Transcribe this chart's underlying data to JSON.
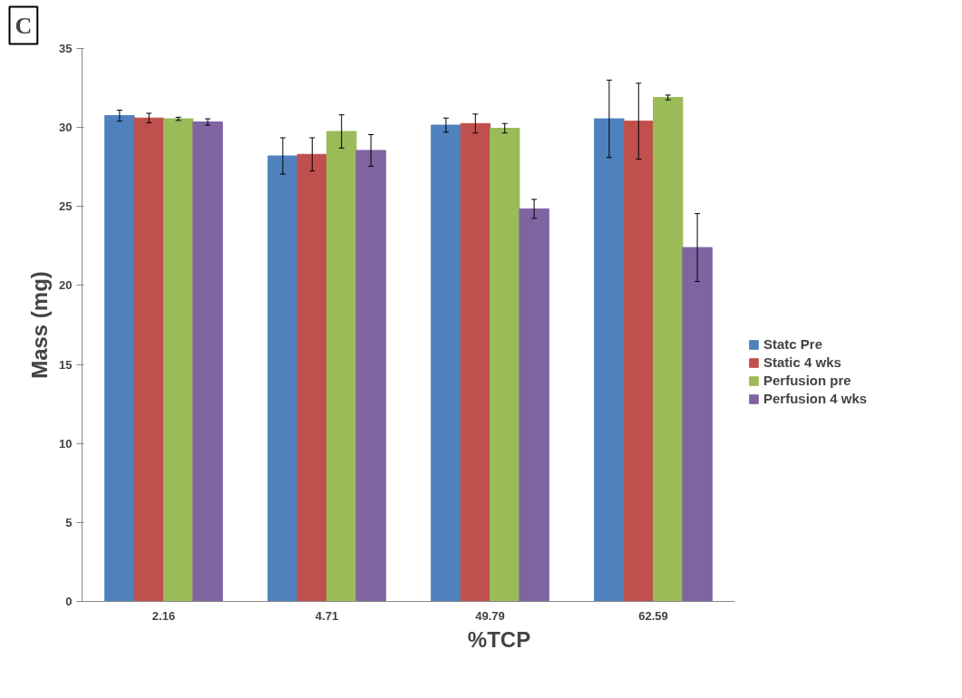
{
  "chart_data": {
    "type": "bar",
    "categories": [
      "2.16",
      "4.71",
      "49.79",
      "62.59"
    ],
    "xlabel": "%TCP",
    "ylabel": "Mass (mg)",
    "annotations": [
      "C"
    ],
    "ylim": [
      0,
      35
    ],
    "yticks": [
      0,
      5,
      10,
      15,
      20,
      25,
      30,
      35
    ],
    "grid": false,
    "legend": "right",
    "series": [
      {
        "name": "Statc Pre",
        "color": "#4f81bd",
        "values": [
          30.75,
          28.2,
          30.15,
          30.55
        ],
        "errors": [
          0.35,
          1.15,
          0.45,
          2.45
        ]
      },
      {
        "name": "Static 4 wks",
        "color": "#c0504d",
        "values": [
          30.6,
          28.3,
          30.25,
          30.4
        ],
        "errors": [
          0.3,
          1.05,
          0.6,
          2.4
        ]
      },
      {
        "name": "Perfusion pre",
        "color": "#9bbb59",
        "values": [
          30.55,
          29.75,
          29.95,
          31.9
        ],
        "errors": [
          0.1,
          1.05,
          0.3,
          0.15
        ]
      },
      {
        "name": "Perfusion 4 wks",
        "color": "#8064a2",
        "values": [
          30.35,
          28.55,
          24.85,
          22.4
        ],
        "errors": [
          0.2,
          1.0,
          0.6,
          2.15
        ]
      }
    ]
  }
}
